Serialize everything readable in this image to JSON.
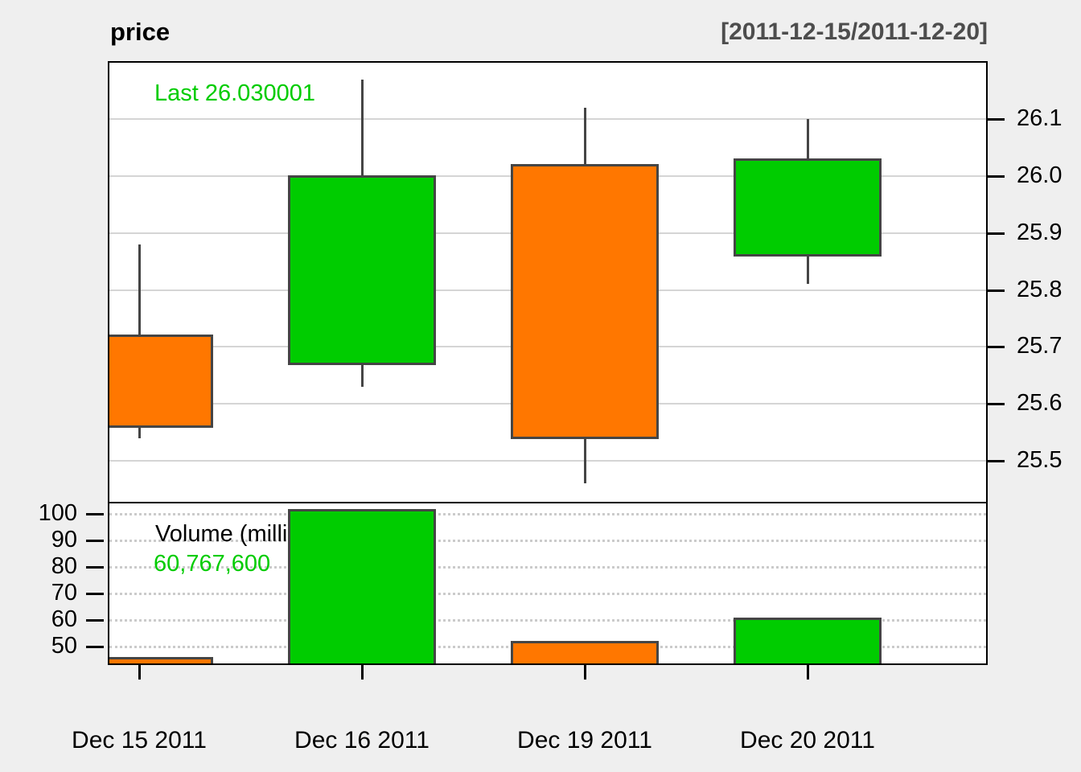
{
  "header": {
    "title": "price",
    "range": "[2011-12-15/2011-12-20]"
  },
  "annotations": {
    "last_label": "Last 26.030001",
    "volume_label": "Volume (millions):",
    "volume_value": "60,767,600"
  },
  "colors": {
    "background": "#EFEFEF",
    "panel_background": "#FFFFFF",
    "up": "#00CC00",
    "down": "#FF7700",
    "candle_border": "#454545",
    "grid_price": "#D5D5D5",
    "grid_volume": "#CBCBCB",
    "last_text": "#00CC00",
    "volume_value_text": "#00CC00",
    "range_text": "#4D4D4D",
    "axis_text": "#000000"
  },
  "chart_data": {
    "type": "candlestick+volume",
    "title": "price",
    "subtitle": "[2011-12-15/2011-12-20]",
    "categories": [
      "Dec 15 2011",
      "Dec 16 2011",
      "Dec 19 2011",
      "Dec 20 2011"
    ],
    "series": [
      {
        "name": "price",
        "ohlc": [
          {
            "open": 25.72,
            "high": 25.88,
            "low": 25.54,
            "close": 25.56
          },
          {
            "open": 25.67,
            "high": 26.17,
            "low": 25.63,
            "close": 26.0
          },
          {
            "open": 26.02,
            "high": 26.12,
            "low": 25.46,
            "close": 25.54
          },
          {
            "open": 25.86,
            "high": 26.1,
            "low": 25.81,
            "close": 26.03
          }
        ]
      },
      {
        "name": "volume_millions",
        "values": [
          46,
          102,
          52,
          60.7676
        ]
      }
    ],
    "last_price": 26.030001,
    "last_volume": "60,767,600",
    "price_axis": {
      "side": "right",
      "ticks": [
        26.1,
        26.0,
        25.9,
        25.8,
        25.7,
        25.6,
        25.5
      ],
      "tick_labels": [
        "26.1",
        "26.0",
        "25.9",
        "25.8",
        "25.7",
        "25.6",
        "25.5"
      ],
      "min": 25.428,
      "max": 26.199,
      "grid": "solid"
    },
    "volume_axis": {
      "side": "left",
      "ticks": [
        100,
        90,
        80,
        70,
        60,
        50
      ],
      "tick_labels": [
        "100",
        "90",
        "80",
        "70",
        "60",
        "50"
      ],
      "min": 43.5,
      "max": 104.0,
      "grid": "dotted"
    },
    "legend_position": "none"
  }
}
